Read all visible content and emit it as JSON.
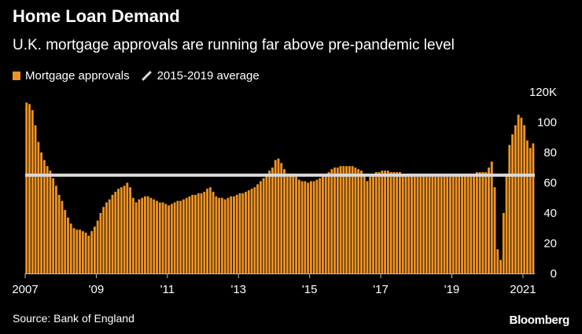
{
  "header": {
    "title": "Home Loan Demand",
    "subtitle": "U.K. mortgage approvals are running far above pre-pandemic level"
  },
  "legend": {
    "bars_label": "Mortgage approvals",
    "line_label": "2015-2019 average"
  },
  "footer": {
    "source": "Source: Bank of England",
    "brand": "Bloomberg"
  },
  "colors": {
    "bar": "#ee9324",
    "average_line": "#d9d9d9",
    "axis": "#bbbbbb",
    "background": "#000000"
  },
  "chart_data": {
    "type": "bar",
    "title": "Home Loan Demand",
    "subtitle": "U.K. mortgage approvals are running far above pre-pandemic level",
    "ylabel": "",
    "xlabel": "",
    "ylim": [
      0,
      120
    ],
    "y_ticks": [
      0,
      20,
      40,
      60,
      80,
      100,
      120
    ],
    "y_tick_labels": [
      "0",
      "20",
      "40",
      "60",
      "80",
      "100",
      "120K"
    ],
    "x_tick_labels": [
      "2007",
      "'09",
      "'11",
      "'13",
      "'15",
      "'17",
      "'19",
      "2021"
    ],
    "x_tick_years": [
      2007,
      2009,
      2011,
      2013,
      2015,
      2017,
      2019,
      2021
    ],
    "start": "2007-01",
    "frequency": "monthly",
    "average_2015_2019": 65,
    "anchors": [
      [
        "2007-01",
        113
      ],
      [
        "2007-02",
        112
      ],
      [
        "2007-03",
        108
      ],
      [
        "2007-04",
        98
      ],
      [
        "2007-05",
        87
      ],
      [
        "2007-06",
        80
      ],
      [
        "2007-07",
        75
      ],
      [
        "2007-08",
        71
      ],
      [
        "2007-09",
        68
      ],
      [
        "2007-10",
        63
      ],
      [
        "2007-11",
        58
      ],
      [
        "2007-12",
        52
      ],
      [
        "2008-01",
        48
      ],
      [
        "2008-02",
        42
      ],
      [
        "2008-03",
        37
      ],
      [
        "2008-04",
        33
      ],
      [
        "2008-05",
        30
      ],
      [
        "2008-06",
        29
      ],
      [
        "2008-07",
        29
      ],
      [
        "2008-08",
        28
      ],
      [
        "2008-09",
        27
      ],
      [
        "2008-10",
        25
      ],
      [
        "2008-11",
        28
      ],
      [
        "2008-12",
        31
      ],
      [
        "2009-01",
        35
      ],
      [
        "2009-02",
        40
      ],
      [
        "2009-03",
        44
      ],
      [
        "2009-04",
        47
      ],
      [
        "2009-05",
        49
      ],
      [
        "2009-06",
        52
      ],
      [
        "2009-07",
        54
      ],
      [
        "2009-08",
        56
      ],
      [
        "2009-09",
        57
      ],
      [
        "2009-10",
        58
      ],
      [
        "2009-11",
        60
      ],
      [
        "2009-12",
        57
      ],
      [
        "2010-01",
        50
      ],
      [
        "2010-02",
        47
      ],
      [
        "2010-04",
        50
      ],
      [
        "2010-06",
        51
      ],
      [
        "2010-09",
        48
      ],
      [
        "2010-12",
        46
      ],
      [
        "2011-01",
        45
      ],
      [
        "2011-03",
        47
      ],
      [
        "2011-06",
        49
      ],
      [
        "2011-09",
        52
      ],
      [
        "2011-12",
        53
      ],
      [
        "2012-03",
        57
      ],
      [
        "2012-05",
        51
      ],
      [
        "2012-08",
        49
      ],
      [
        "2012-12",
        52
      ],
      [
        "2013-03",
        54
      ],
      [
        "2013-06",
        57
      ],
      [
        "2013-09",
        63
      ],
      [
        "2013-12",
        70
      ],
      [
        "2014-01",
        75
      ],
      [
        "2014-02",
        76
      ],
      [
        "2014-03",
        73
      ],
      [
        "2014-05",
        64
      ],
      [
        "2014-07",
        66
      ],
      [
        "2014-09",
        62
      ],
      [
        "2014-12",
        60
      ],
      [
        "2015-03",
        62
      ],
      [
        "2015-06",
        66
      ],
      [
        "2015-09",
        70
      ],
      [
        "2016-01",
        71
      ],
      [
        "2016-03",
        71
      ],
      [
        "2016-06",
        68
      ],
      [
        "2016-08",
        61
      ],
      [
        "2016-10",
        66
      ],
      [
        "2017-01",
        68
      ],
      [
        "2017-06",
        67
      ],
      [
        "2017-12",
        64
      ],
      [
        "2018-06",
        64
      ],
      [
        "2018-12",
        64
      ],
      [
        "2019-06",
        66
      ],
      [
        "2019-12",
        67
      ],
      [
        "2020-01",
        70
      ],
      [
        "2020-02",
        74
      ],
      [
        "2020-03",
        57
      ],
      [
        "2020-04",
        16
      ],
      [
        "2020-05",
        9
      ],
      [
        "2020-06",
        40
      ],
      [
        "2020-07",
        66
      ],
      [
        "2020-08",
        85
      ],
      [
        "2020-09",
        92
      ],
      [
        "2020-10",
        98
      ],
      [
        "2020-11",
        105
      ],
      [
        "2020-12",
        103
      ],
      [
        "2021-01",
        98
      ],
      [
        "2021-02",
        88
      ],
      [
        "2021-03",
        83
      ],
      [
        "2021-04",
        86
      ]
    ]
  }
}
